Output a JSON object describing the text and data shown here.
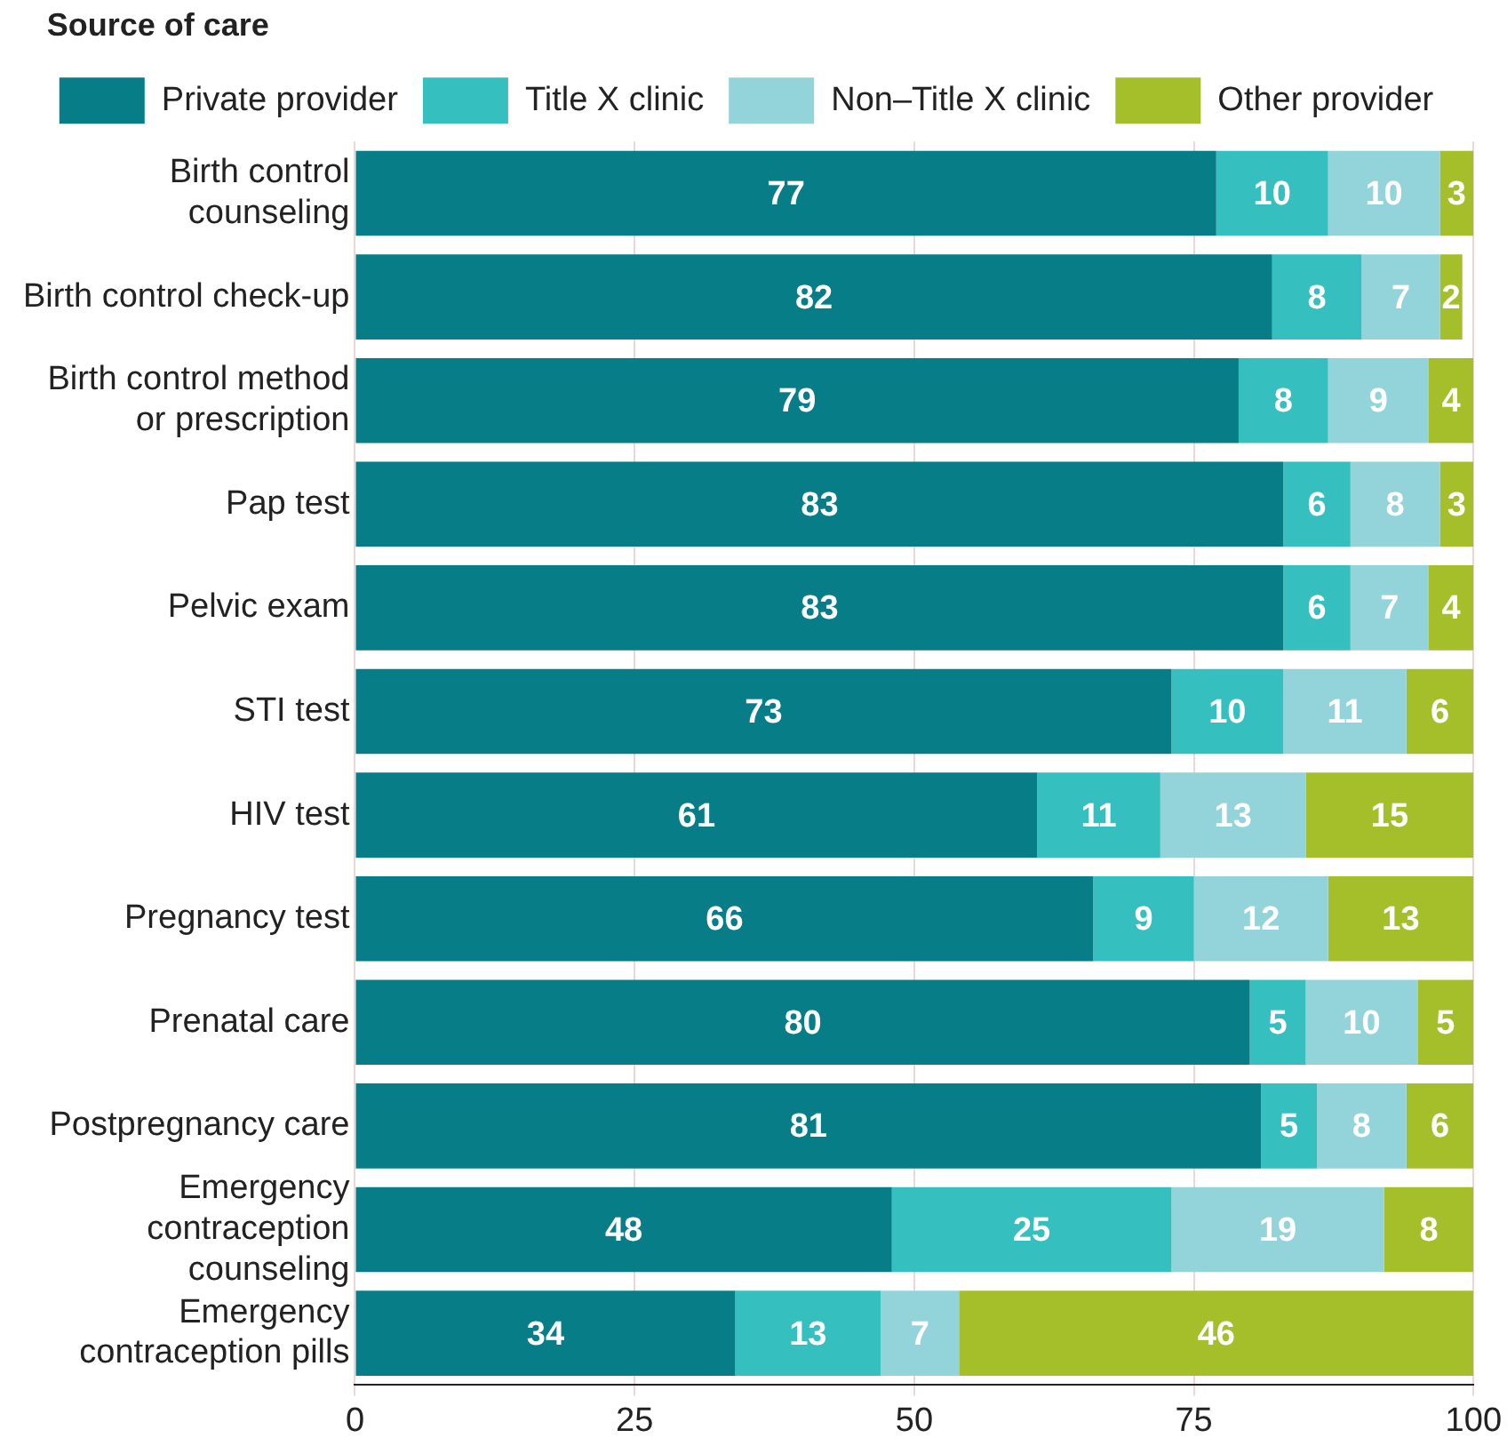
{
  "chart_data": {
    "type": "bar",
    "orientation": "horizontal",
    "stacked": true,
    "legend_title": "Source of care",
    "legend": "top",
    "grid": "x",
    "data_labels": true,
    "categories": [
      "Birth control counseling",
      "Birth control check-up",
      "Birth control method or prescription",
      "Pap test",
      "Pelvic exam",
      "STI test",
      "HIV test",
      "Pregnancy test",
      "Prenatal care",
      "Postpregnancy care",
      "Emergency contraception counseling",
      "Emergency contraception pills"
    ],
    "xlim": [
      0,
      100
    ],
    "xticks": [
      0,
      25,
      50,
      75,
      100
    ],
    "series": [
      {
        "name": "Private provider",
        "color": "#077d87",
        "values": [
          77,
          82,
          79,
          83,
          83,
          73,
          61,
          66,
          80,
          81,
          48,
          34
        ]
      },
      {
        "name": "Title X clinic",
        "color": "#35bfbf",
        "values": [
          10,
          8,
          8,
          6,
          6,
          10,
          11,
          9,
          5,
          5,
          25,
          13
        ]
      },
      {
        "name": "Non–Title X clinic",
        "color": "#93d4db",
        "values": [
          10,
          7,
          9,
          8,
          7,
          11,
          13,
          12,
          10,
          8,
          19,
          7
        ]
      },
      {
        "name": "Other provider",
        "color": "#a5bf2b",
        "values": [
          3,
          2,
          4,
          3,
          4,
          6,
          15,
          13,
          5,
          6,
          8,
          46
        ]
      }
    ]
  }
}
